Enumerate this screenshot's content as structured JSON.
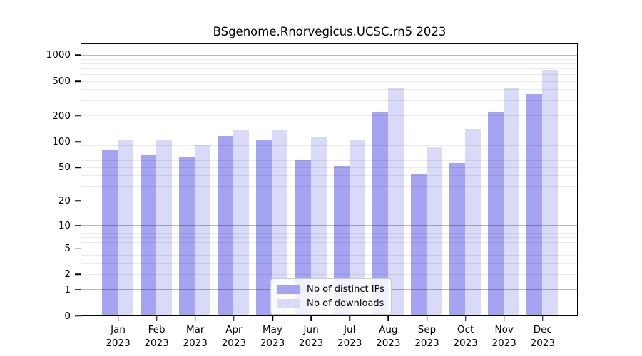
{
  "chart_data": {
    "type": "bar",
    "title": "BSgenome.Rnorvegicus.UCSC.rn5 2023",
    "xlabel": "",
    "ylabel": "",
    "x_year": "2023",
    "categories": [
      "Jan",
      "Feb",
      "Mar",
      "Apr",
      "May",
      "Jun",
      "Jul",
      "Aug",
      "Sep",
      "Oct",
      "Nov",
      "Dec"
    ],
    "series": [
      {
        "name": "Nb of distinct IPs",
        "color": "#a4a4f2",
        "values": [
          80,
          70,
          65,
          115,
          105,
          60,
          52,
          215,
          42,
          56,
          218,
          355
        ]
      },
      {
        "name": "Nb of downloads",
        "color": "#d9d9f8",
        "values": [
          105,
          105,
          90,
          135,
          135,
          112,
          105,
          410,
          85,
          140,
          415,
          655
        ]
      }
    ],
    "y_scale": "log10(1+x)",
    "ylim": [
      0,
      1300
    ],
    "y_ticks": [
      0,
      1,
      2,
      5,
      10,
      20,
      50,
      100,
      200,
      500,
      1000
    ],
    "grid_major": [
      1,
      10,
      100,
      1000
    ],
    "grid_minor": [
      2,
      3,
      4,
      5,
      6,
      7,
      8,
      9,
      20,
      30,
      40,
      50,
      60,
      70,
      80,
      90,
      200,
      300,
      400,
      500,
      600,
      700,
      800,
      900
    ],
    "grid": "on",
    "legend_position": "bottom-center-inside"
  },
  "colors": {
    "bar_distinct_ips": "#a4a4f2",
    "bar_downloads": "#d9d9f8",
    "grid_major": "#b9b9b9",
    "grid_minor": "#ebebeb",
    "axis": "#000000",
    "background": "#ffffff",
    "legend_border": "#cccccc"
  }
}
